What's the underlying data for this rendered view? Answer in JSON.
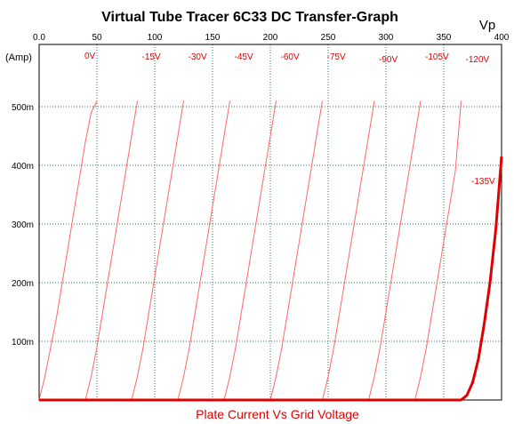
{
  "chart_data": {
    "type": "line",
    "title": "Virtual Tube Tracer 6C33 DC Transfer-Graph",
    "subtitle": "Plate Current Vs Grid Voltage",
    "xlabel": "Vp",
    "ylabel": "(Amp)",
    "xlim": [
      0,
      400
    ],
    "ylim": [
      0,
      0.5
    ],
    "x_ticks": [
      0,
      50,
      100,
      150,
      200,
      250,
      300,
      350,
      400
    ],
    "x_tick_labels": [
      "0.0",
      "50",
      "100",
      "150",
      "200",
      "250",
      "300",
      "350",
      "400"
    ],
    "y_ticks": [
      0.1,
      0.2,
      0.3,
      0.4,
      0.5
    ],
    "y_tick_labels": [
      "100m",
      "200m",
      "300m",
      "400m",
      "500m"
    ],
    "grid": true,
    "series": [
      {
        "name": "0V",
        "x": [
          0,
          5,
          10,
          15,
          20,
          25,
          30,
          35,
          40,
          45,
          50
        ],
        "y": [
          0,
          0.04,
          0.09,
          0.14,
          0.2,
          0.26,
          0.32,
          0.38,
          0.44,
          0.49,
          0.51
        ]
      },
      {
        "name": "-15V",
        "x": [
          40,
          45,
          50,
          55,
          60,
          65,
          70,
          75,
          80,
          85
        ],
        "y": [
          0,
          0.04,
          0.09,
          0.15,
          0.21,
          0.27,
          0.33,
          0.39,
          0.45,
          0.51
        ]
      },
      {
        "name": "-30V",
        "x": [
          80,
          85,
          90,
          95,
          100,
          105,
          110,
          115,
          120,
          125
        ],
        "y": [
          0,
          0.04,
          0.09,
          0.15,
          0.21,
          0.27,
          0.33,
          0.39,
          0.45,
          0.51
        ]
      },
      {
        "name": "-45V",
        "x": [
          120,
          125,
          130,
          135,
          140,
          145,
          150,
          155,
          160,
          165
        ],
        "y": [
          0,
          0.04,
          0.09,
          0.15,
          0.21,
          0.27,
          0.33,
          0.39,
          0.45,
          0.51
        ]
      },
      {
        "name": "-60V",
        "x": [
          160,
          165,
          170,
          175,
          180,
          185,
          190,
          195,
          200,
          205
        ],
        "y": [
          0,
          0.04,
          0.09,
          0.15,
          0.21,
          0.27,
          0.33,
          0.39,
          0.45,
          0.51
        ]
      },
      {
        "name": "-75V",
        "x": [
          200,
          205,
          210,
          215,
          220,
          225,
          230,
          235,
          240,
          245
        ],
        "y": [
          0,
          0.04,
          0.09,
          0.15,
          0.21,
          0.27,
          0.33,
          0.39,
          0.45,
          0.51
        ]
      },
      {
        "name": "-90V",
        "x": [
          245,
          250,
          255,
          260,
          265,
          270,
          275,
          280,
          285,
          290
        ],
        "y": [
          0,
          0.04,
          0.09,
          0.15,
          0.21,
          0.27,
          0.33,
          0.39,
          0.45,
          0.51
        ]
      },
      {
        "name": "-105V",
        "x": [
          285,
          290,
          295,
          300,
          305,
          310,
          315,
          320,
          325,
          330
        ],
        "y": [
          0,
          0.04,
          0.09,
          0.15,
          0.21,
          0.27,
          0.33,
          0.39,
          0.45,
          0.51
        ]
      },
      {
        "name": "-120V",
        "x": [
          325,
          330,
          335,
          340,
          345,
          350,
          355,
          360,
          365
        ],
        "y": [
          0,
          0.04,
          0.09,
          0.15,
          0.21,
          0.27,
          0.33,
          0.39,
          0.51
        ]
      },
      {
        "name": "-135V",
        "x": [
          0,
          100,
          200,
          300,
          365,
          370,
          375,
          380,
          385,
          390,
          395,
          400
        ],
        "y": [
          0,
          0,
          0,
          0,
          0,
          0.008,
          0.03,
          0.07,
          0.13,
          0.2,
          0.29,
          0.415
        ]
      }
    ],
    "colors": {
      "curves": "#ff6666",
      "highlight": "#e00000",
      "grid": "#2e6f5a",
      "axis": "#000000"
    }
  }
}
